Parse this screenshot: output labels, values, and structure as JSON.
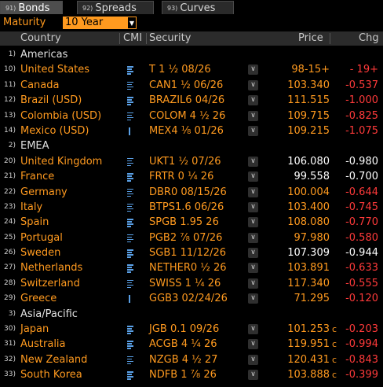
{
  "tabs": [
    {
      "num": "91)",
      "label": "Bonds",
      "active": true
    },
    {
      "num": "92)",
      "label": "Spreads",
      "active": false
    },
    {
      "num": "93)",
      "label": "Curves",
      "active": false
    }
  ],
  "maturity": {
    "label": "Maturity",
    "value": "10 Year"
  },
  "columns": {
    "country": "Country",
    "cmi": "CMI",
    "security": "Security",
    "price": "Price",
    "chg": "Chg"
  },
  "colors": {
    "accent": "#ff9a1f",
    "negative": "#ff3a3a",
    "cmi_icon": "#5aa0e6"
  },
  "rows": [
    {
      "type": "region",
      "idx": "1)",
      "name": "Americas"
    },
    {
      "type": "bond",
      "idx": "10)",
      "country": "United States",
      "security": "T 1 ½ 08/26",
      "price": "98-15+",
      "price_color": "orange",
      "suffix": "",
      "chg": "- 19+",
      "chg_color": "red",
      "cmi_icon": "chart-lines-icon"
    },
    {
      "type": "bond",
      "idx": "11)",
      "country": "Canada",
      "security": "CAN1 ½ 06/26",
      "price": "103.340",
      "price_color": "orange",
      "suffix": "",
      "chg": "-0.537",
      "chg_color": "red",
      "cmi_icon": "chart-lines-icon"
    },
    {
      "type": "bond",
      "idx": "12)",
      "country": "Brazil (USD)",
      "security": "BRAZIL6 04/26",
      "price": "111.515",
      "price_color": "orange",
      "suffix": "",
      "chg": "-1.000",
      "chg_color": "red",
      "cmi_icon": "chart-lines-icon"
    },
    {
      "type": "bond",
      "idx": "13)",
      "country": "Colombia (USD)",
      "security": "COLOM 4 ½ 26",
      "price": "109.715",
      "price_color": "orange",
      "suffix": "",
      "chg": "-0.825",
      "chg_color": "red",
      "cmi_icon": "chart-lines-icon"
    },
    {
      "type": "bond",
      "idx": "14)",
      "country": "Mexico (USD)",
      "security": "MEX4 ⅛ 01/26",
      "price": "109.215",
      "price_color": "orange",
      "suffix": "",
      "chg": "-1.075",
      "chg_color": "red",
      "cmi_icon": "chart-bar-icon"
    },
    {
      "type": "region",
      "idx": "2)",
      "name": "EMEA"
    },
    {
      "type": "bond",
      "idx": "20)",
      "country": "United Kingdom",
      "security": "UKT1 ½ 07/26",
      "price": "106.080",
      "price_color": "white",
      "suffix": "",
      "chg": "-0.980",
      "chg_color": "white",
      "cmi_icon": "chart-lines-icon"
    },
    {
      "type": "bond",
      "idx": "21)",
      "country": "France",
      "security": "FRTR 0 ¼ 26",
      "price": "99.558",
      "price_color": "white",
      "suffix": "",
      "chg": "-0.700",
      "chg_color": "white",
      "cmi_icon": "chart-lines-icon"
    },
    {
      "type": "bond",
      "idx": "22)",
      "country": "Germany",
      "security": "DBR0 08/15/26",
      "price": "100.004",
      "price_color": "orange",
      "suffix": "",
      "chg": "-0.644",
      "chg_color": "red",
      "cmi_icon": "chart-lines-icon"
    },
    {
      "type": "bond",
      "idx": "23)",
      "country": "Italy",
      "security": "BTPS1.6 06/26",
      "price": "103.400",
      "price_color": "orange",
      "suffix": "",
      "chg": "-0.745",
      "chg_color": "red",
      "cmi_icon": "chart-lines-icon"
    },
    {
      "type": "bond",
      "idx": "24)",
      "country": "Spain",
      "security": "SPGB 1.95 26",
      "price": "108.080",
      "price_color": "orange",
      "suffix": "",
      "chg": "-0.770",
      "chg_color": "red",
      "cmi_icon": "chart-lines-icon"
    },
    {
      "type": "bond",
      "idx": "25)",
      "country": "Portugal",
      "security": "PGB2 ⅞ 07/26",
      "price": "97.980",
      "price_color": "orange",
      "suffix": "",
      "chg": "-0.580",
      "chg_color": "red",
      "cmi_icon": "chart-lines-icon"
    },
    {
      "type": "bond",
      "idx": "26)",
      "country": "Sweden",
      "security": "SGB1 11/12/26",
      "price": "107.309",
      "price_color": "white",
      "suffix": "",
      "chg": "-0.944",
      "chg_color": "white",
      "cmi_icon": "chart-lines-icon"
    },
    {
      "type": "bond",
      "idx": "27)",
      "country": "Netherlands",
      "security": "NETHER0 ½ 26",
      "price": "103.891",
      "price_color": "orange",
      "suffix": "",
      "chg": "-0.633",
      "chg_color": "red",
      "cmi_icon": "chart-lines-icon"
    },
    {
      "type": "bond",
      "idx": "28)",
      "country": "Switzerland",
      "security": "SWISS 1 ¼ 26",
      "price": "117.340",
      "price_color": "orange",
      "suffix": "",
      "chg": "-0.555",
      "chg_color": "red",
      "cmi_icon": "chart-lines-icon"
    },
    {
      "type": "bond",
      "idx": "29)",
      "country": "Greece",
      "security": "GGB3 02/24/26",
      "price": "71.295",
      "price_color": "orange",
      "suffix": "",
      "chg": "-0.120",
      "chg_color": "red",
      "cmi_icon": "chart-bar-icon"
    },
    {
      "type": "region",
      "idx": "3)",
      "name": "Asia/Pacific"
    },
    {
      "type": "bond",
      "idx": "30)",
      "country": "Japan",
      "security": "JGB 0.1 09/26",
      "price": "101.253",
      "price_color": "orange",
      "suffix": "c",
      "chg": "-0.203",
      "chg_color": "red",
      "cmi_icon": "chart-lines-icon"
    },
    {
      "type": "bond",
      "idx": "31)",
      "country": "Australia",
      "security": "ACGB 4 ¼ 26",
      "price": "119.951",
      "price_color": "orange",
      "suffix": "c",
      "chg": "-0.994",
      "chg_color": "red",
      "cmi_icon": "chart-lines-icon"
    },
    {
      "type": "bond",
      "idx": "32)",
      "country": "New Zealand",
      "security": "NZGB 4 ½ 27",
      "price": "120.431",
      "price_color": "orange",
      "suffix": "c",
      "chg": "-0.843",
      "chg_color": "red",
      "cmi_icon": "chart-lines-icon"
    },
    {
      "type": "bond",
      "idx": "33)",
      "country": "South Korea",
      "security": "NDFB 1 ⅞ 26",
      "price": "103.888",
      "price_color": "orange",
      "suffix": "c",
      "chg": "-0.399",
      "chg_color": "red",
      "cmi_icon": "chart-lines-icon"
    }
  ]
}
